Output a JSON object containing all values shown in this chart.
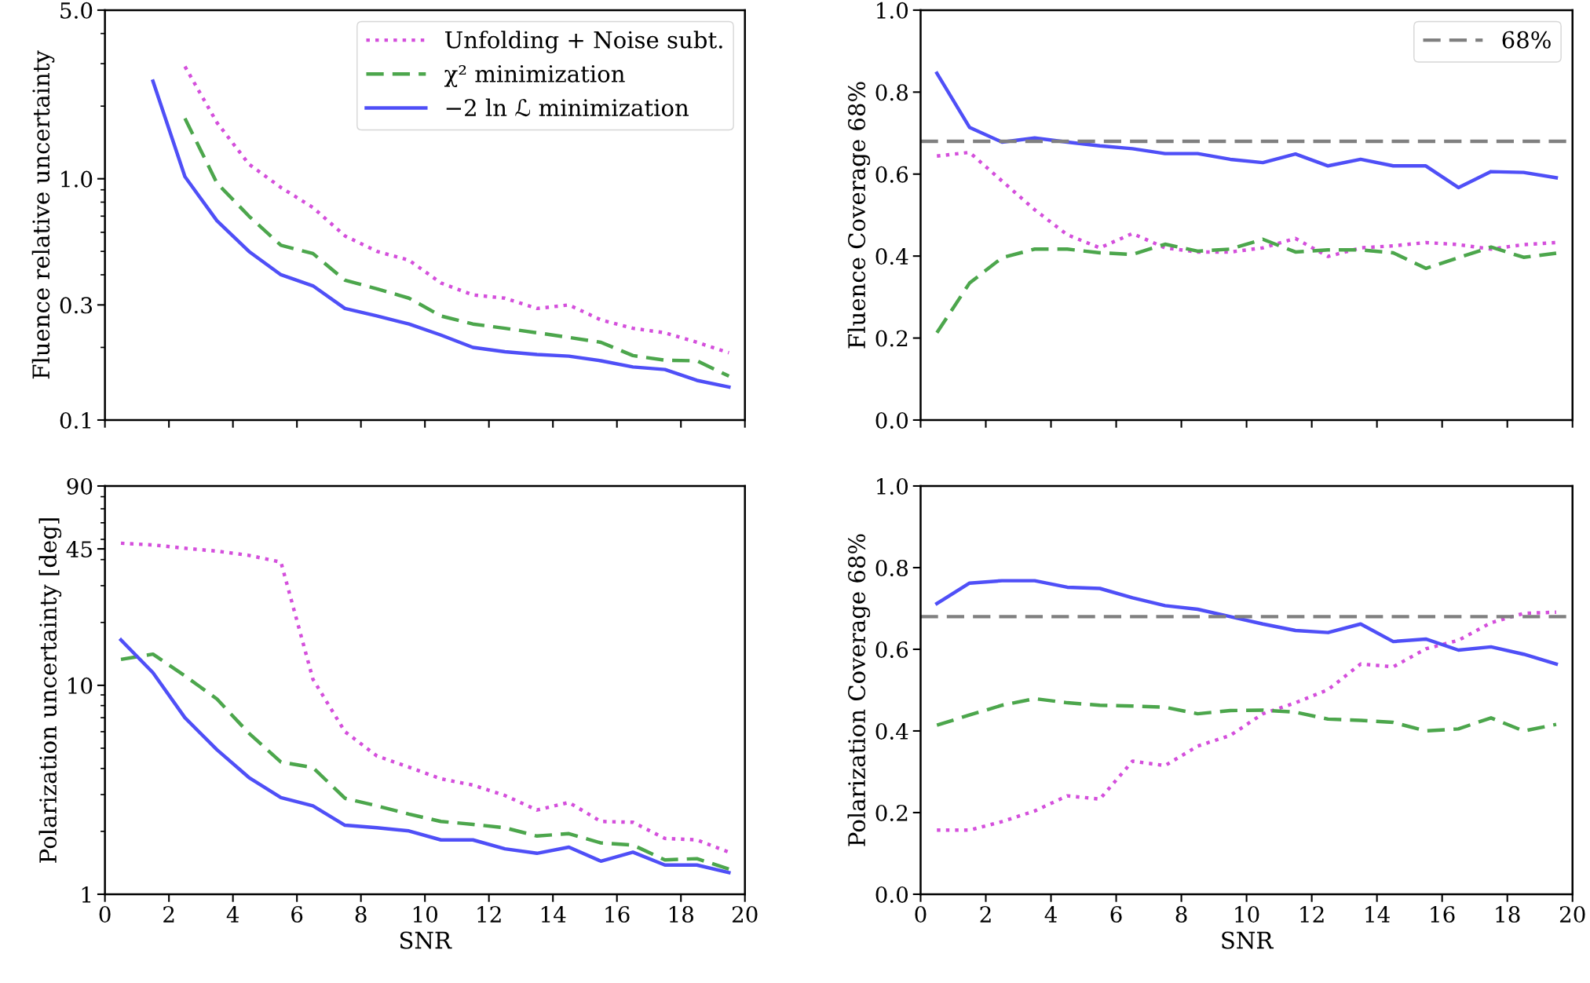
{
  "chart_data": [
    {
      "type": "line",
      "ylabel": "Fluence relative uncertainty",
      "log": "y",
      "xlim": [
        0,
        20
      ],
      "xticks": [
        0,
        2,
        4,
        6,
        8,
        10,
        12,
        14,
        16,
        18,
        20
      ],
      "ylim": [
        0.1,
        5.0
      ],
      "yticks": [
        0.1,
        0.3,
        {
          "value": 1.0,
          "label": "1.0"
        },
        {
          "value": 5.0,
          "label": "5.0"
        }
      ],
      "tick_labels": "y",
      "legend": "top right",
      "x": [
        1.5,
        2.5,
        3.5,
        4.5,
        5.5,
        6.5,
        7.5,
        8.5,
        9.5,
        10.5,
        11.5,
        12.5,
        13.5,
        14.5,
        15.5,
        16.5,
        17.5,
        18.5,
        19.5
      ],
      "series": [
        {
          "name": "Unfolding + Noise subt.",
          "color": "#d44fdc",
          "line_style": "dotted",
          "values": [
            null,
            2.92,
            1.71,
            1.15,
            0.92,
            0.76,
            0.58,
            0.5,
            0.46,
            0.37,
            0.33,
            0.32,
            0.29,
            0.3,
            0.26,
            0.24,
            0.23,
            0.21,
            0.19
          ]
        },
        {
          "name": "χ² minimization",
          "color": "#4ca64c",
          "line_style": "dashed",
          "values": [
            null,
            1.78,
            0.96,
            0.7,
            0.53,
            0.49,
            0.38,
            0.35,
            0.32,
            0.27,
            0.25,
            0.24,
            0.23,
            0.22,
            0.21,
            0.185,
            0.177,
            0.176,
            0.152
          ]
        },
        {
          "name": "−2 ln ℒ minimization",
          "color": "#4f4ff7",
          "line_style": "solid",
          "values": [
            2.54,
            1.02,
            0.67,
            0.5,
            0.4,
            0.36,
            0.29,
            0.27,
            0.25,
            0.225,
            0.2,
            0.192,
            0.187,
            0.184,
            0.176,
            0.166,
            0.162,
            0.146,
            0.137
          ]
        }
      ]
    },
    {
      "type": "line",
      "ylabel": "Fluence Coverage 68%",
      "xlim": [
        0,
        20
      ],
      "xticks": [
        0,
        2,
        4,
        6,
        8,
        10,
        12,
        14,
        16,
        18,
        20
      ],
      "ylim": [
        0.0,
        1.0
      ],
      "yticks": [
        {
          "value": 0.0,
          "label": "0.0"
        },
        0.2,
        0.4,
        0.6,
        0.8,
        {
          "value": 1.0,
          "label": "1.0"
        }
      ],
      "tick_labels": "y",
      "legend": "top right",
      "ref_lines": [
        {
          "axis": "y",
          "value": 0.68,
          "label": "68%",
          "color": "#808080",
          "line_style": "dashed"
        }
      ],
      "x": [
        0.5,
        1.5,
        2.5,
        3.5,
        4.5,
        5.5,
        6.5,
        7.5,
        8.5,
        9.5,
        10.5,
        11.5,
        12.5,
        13.5,
        14.5,
        15.5,
        16.5,
        17.5,
        18.5,
        19.5
      ],
      "series": [
        {
          "color": "#d44fdc",
          "line_style": "dotted",
          "values": [
            0.644,
            0.653,
            0.583,
            0.513,
            0.452,
            0.42,
            0.455,
            0.42,
            0.41,
            0.41,
            0.42,
            0.443,
            0.399,
            0.42,
            0.425,
            0.433,
            0.428,
            0.417,
            0.428,
            0.433
          ]
        },
        {
          "color": "#4ca64c",
          "line_style": "dashed",
          "values": [
            0.213,
            0.334,
            0.396,
            0.417,
            0.417,
            0.408,
            0.404,
            0.429,
            0.412,
            0.417,
            0.441,
            0.41,
            0.415,
            0.415,
            0.408,
            0.37,
            0.396,
            0.422,
            0.397,
            0.407
          ]
        },
        {
          "color": "#4f4ff7",
          "line_style": "solid",
          "values": [
            0.846,
            0.714,
            0.678,
            0.688,
            0.678,
            0.669,
            0.662,
            0.65,
            0.65,
            0.636,
            0.628,
            0.649,
            0.62,
            0.636,
            0.62,
            0.62,
            0.567,
            0.606,
            0.604,
            0.591
          ]
        }
      ]
    },
    {
      "type": "line",
      "ylabel": "Polarization uncertainty [deg]",
      "xlabel": "SNR",
      "log": "y",
      "xlim": [
        0,
        20
      ],
      "xticks": [
        0,
        2,
        4,
        6,
        8,
        10,
        12,
        14,
        16,
        18,
        20
      ],
      "ylim": [
        1,
        90
      ],
      "yticks": [
        1,
        10,
        45,
        90
      ],
      "x": [
        0.5,
        1.5,
        2.5,
        3.5,
        4.5,
        5.5,
        6.5,
        7.5,
        8.5,
        9.5,
        10.5,
        11.5,
        12.5,
        13.5,
        14.5,
        15.5,
        16.5,
        17.5,
        18.5,
        19.5
      ],
      "series": [
        {
          "color": "#d44fdc",
          "line_style": "dotted",
          "values": [
            47.9,
            47.0,
            45.3,
            43.9,
            41.9,
            38.9,
            10.7,
            6.0,
            4.59,
            4.06,
            3.57,
            3.33,
            2.97,
            2.53,
            2.75,
            2.23,
            2.21,
            1.85,
            1.82,
            1.59
          ]
        },
        {
          "color": "#4ca64c",
          "line_style": "dashed",
          "values": [
            13.3,
            14.1,
            11.1,
            8.6,
            5.9,
            4.29,
            4.04,
            2.88,
            2.65,
            2.42,
            2.23,
            2.16,
            2.08,
            1.9,
            1.95,
            1.76,
            1.72,
            1.46,
            1.48,
            1.32
          ]
        },
        {
          "color": "#4f4ff7",
          "line_style": "solid",
          "values": [
            16.5,
            11.5,
            7.0,
            4.92,
            3.62,
            2.9,
            2.65,
            2.14,
            2.08,
            2.01,
            1.82,
            1.82,
            1.65,
            1.57,
            1.68,
            1.44,
            1.59,
            1.38,
            1.38,
            1.27
          ]
        }
      ]
    },
    {
      "type": "line",
      "ylabel": "Polarization Coverage 68%",
      "xlabel": "SNR",
      "xlim": [
        0,
        20
      ],
      "xticks": [
        0,
        2,
        4,
        6,
        8,
        10,
        12,
        14,
        16,
        18,
        20
      ],
      "ylim": [
        0.0,
        1.0
      ],
      "yticks": [
        {
          "value": 0.0,
          "label": "0.0"
        },
        0.2,
        0.4,
        0.6,
        0.8,
        {
          "value": 1.0,
          "label": "1.0"
        }
      ],
      "ref_lines": [
        {
          "axis": "y",
          "value": 0.68,
          "color": "#808080",
          "line_style": "dashed"
        }
      ],
      "x": [
        0.5,
        1.5,
        2.5,
        3.5,
        4.5,
        5.5,
        6.5,
        7.5,
        8.5,
        9.5,
        10.5,
        11.5,
        12.5,
        13.5,
        14.5,
        15.5,
        16.5,
        17.5,
        18.5,
        19.5
      ],
      "series": [
        {
          "color": "#d44fdc",
          "line_style": "dotted",
          "values": [
            0.157,
            0.157,
            0.178,
            0.204,
            0.241,
            0.233,
            0.326,
            0.315,
            0.363,
            0.389,
            0.442,
            0.469,
            0.501,
            0.564,
            0.557,
            0.601,
            0.622,
            0.665,
            0.688,
            0.691
          ]
        },
        {
          "color": "#4ca64c",
          "line_style": "dashed",
          "values": [
            0.414,
            0.439,
            0.463,
            0.479,
            0.469,
            0.463,
            0.461,
            0.458,
            0.442,
            0.45,
            0.451,
            0.446,
            0.429,
            0.426,
            0.421,
            0.4,
            0.405,
            0.432,
            0.4,
            0.416
          ]
        },
        {
          "color": "#4f4ff7",
          "line_style": "solid",
          "values": [
            0.712,
            0.762,
            0.768,
            0.768,
            0.752,
            0.749,
            0.726,
            0.707,
            0.698,
            0.68,
            0.662,
            0.646,
            0.641,
            0.662,
            0.619,
            0.625,
            0.598,
            0.606,
            0.588,
            0.564
          ]
        }
      ]
    }
  ]
}
